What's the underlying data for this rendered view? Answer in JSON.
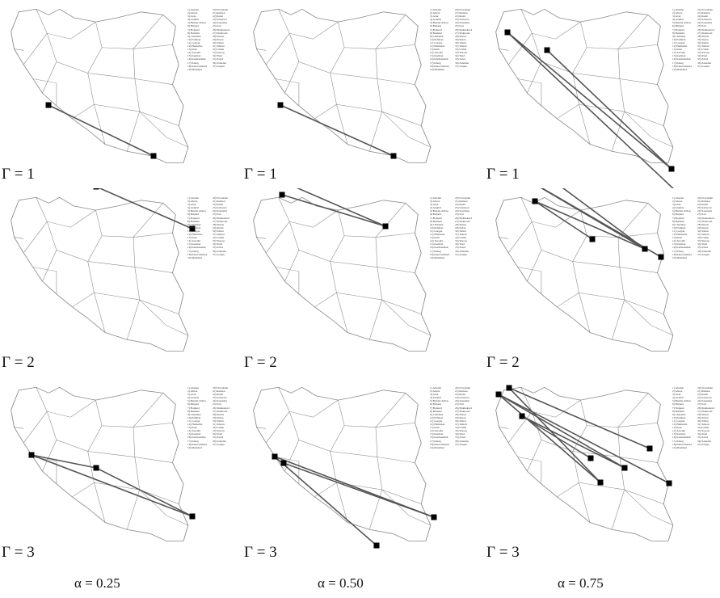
{
  "city_legend": [
    "1) Abadan",
    "2) Ahvaz",
    "3) Arak",
    "4) Ardabil",
    "5) Bandar Abbas",
    "6) Birjand",
    "7) Bojnurd",
    "8) Bushehr",
    "9) Chabahar",
    "10) Esfahan",
    "11) Gorgan",
    "12) Hamedan",
    "13) Ilam",
    "14) Jonoubi",
    "15) Kerman",
    "16) Kermanshah",
    "17) Kharg",
    "18) Khorramabad",
    "19) Mashhad",
    "20) Nowshahr",
    "21) Ramsar",
    "22) Rasht",
    "23) Sabzevar",
    "24) Sanandaj",
    "25) Sari",
    "26) Shahrekord",
    "27) Shahroud",
    "28) Shiraz",
    "29) Sirjan",
    "30) Tabriz",
    "31) Tehran",
    "32) Urmia",
    "33) Yasouj",
    "34) Yazd",
    "35) Zabol",
    "36) Zahedan",
    "37) Zanjan"
  ],
  "gamma_labels": [
    "Γ = 1",
    "Γ = 2",
    "Γ = 3"
  ],
  "alpha_labels": [
    "α = 0.25",
    "α = 0.50",
    "α = 0.75"
  ],
  "colors": {
    "route": "#555555",
    "border": "#8a8a8a",
    "hub": "#000000"
  },
  "panels": [
    {
      "gamma": "Γ = 1",
      "alpha": "α = 0.25",
      "hubs": [
        [
          60,
          130
        ],
        [
          190,
          193
        ]
      ],
      "routes": [
        [
          [
            60,
            130
          ],
          [
            190,
            193
          ]
        ]
      ]
    },
    {
      "gamma": "Γ = 1",
      "alpha": "α = 0.50",
      "hubs": [
        [
          47,
          130
        ],
        [
          187,
          193
        ]
      ],
      "routes": [
        [
          [
            47,
            130
          ],
          [
            187,
            193
          ]
        ]
      ]
    },
    {
      "gamma": "Γ = 1",
      "alpha": "α = 0.75",
      "hubs": [
        [
          28,
          40
        ],
        [
          77,
          62
        ],
        [
          231,
          209
        ],
        [
          237,
          237
        ]
      ],
      "routes": [
        [
          [
            28,
            40
          ],
          [
            231,
            209
          ]
        ],
        [
          [
            28,
            40
          ],
          [
            237,
            237
          ]
        ],
        [
          [
            77,
            62
          ],
          [
            231,
            209
          ]
        ]
      ]
    },
    {
      "gamma": "Γ = 2",
      "alpha": "α = 0.25",
      "hubs": [
        [
          39,
          215
        ],
        [
          119,
          231
        ],
        [
          238,
          283
        ]
      ],
      "routes": [
        [
          [
            39,
            215
          ],
          [
            119,
            231
          ]
        ],
        [
          [
            119,
            231
          ],
          [
            238,
            283
          ]
        ]
      ]
    },
    {
      "gamma": "Γ = 2",
      "alpha": "α = 0.50",
      "hubs": [
        [
          39,
          220
        ],
        [
          49,
          241
        ],
        [
          177,
          280
        ]
      ],
      "routes": [
        [
          [
            39,
            220
          ],
          [
            177,
            280
          ]
        ],
        [
          [
            49,
            241
          ],
          [
            177,
            280
          ]
        ]
      ]
    },
    {
      "gamma": "Γ = 2",
      "alpha": "α = 0.75",
      "hubs": [
        [
          28,
          208
        ],
        [
          77,
          218
        ],
        [
          62,
          249
        ],
        [
          133,
          296
        ],
        [
          198,
          308
        ],
        [
          218,
          318
        ]
      ],
      "routes": [
        [
          [
            28,
            208
          ],
          [
            198,
            308
          ]
        ],
        [
          [
            28,
            208
          ],
          [
            218,
            318
          ]
        ],
        [
          [
            77,
            218
          ],
          [
            198,
            308
          ]
        ],
        [
          [
            62,
            249
          ],
          [
            133,
            296
          ]
        ],
        [
          [
            62,
            249
          ],
          [
            198,
            308
          ]
        ]
      ]
    },
    {
      "gamma": "Γ = 3",
      "alpha": "α = 0.25",
      "hubs": [
        [
          39,
          563
        ],
        [
          119,
          579
        ],
        [
          238,
          639
        ]
      ],
      "routes": [
        [
          [
            39,
            563
          ],
          [
            119,
            579
          ]
        ],
        [
          [
            119,
            579
          ],
          [
            238,
            639
          ]
        ],
        [
          [
            39,
            563
          ],
          [
            238,
            639
          ]
        ]
      ]
    },
    {
      "gamma": "Γ = 3",
      "alpha": "α = 0.50",
      "hubs": [
        [
          40,
          565
        ],
        [
          51,
          573
        ],
        [
          166,
          675
        ],
        [
          237,
          640
        ]
      ],
      "routes": [
        [
          [
            40,
            565
          ],
          [
            166,
            675
          ]
        ],
        [
          [
            40,
            565
          ],
          [
            237,
            640
          ]
        ],
        [
          [
            51,
            573
          ],
          [
            237,
            640
          ]
        ]
      ]
    },
    {
      "gamma": "Γ = 3",
      "alpha": "α = 0.75",
      "hubs": [
        [
          17,
          488
        ],
        [
          30,
          480
        ],
        [
          46,
          515
        ],
        [
          131,
          567
        ],
        [
          143,
          597
        ],
        [
          204,
          555
        ],
        [
          228,
          598
        ],
        [
          173,
          579
        ]
      ],
      "routes": [
        [
          [
            17,
            488
          ],
          [
            143,
            597
          ]
        ],
        [
          [
            17,
            488
          ],
          [
            228,
            598
          ]
        ],
        [
          [
            30,
            480
          ],
          [
            204,
            555
          ]
        ],
        [
          [
            30,
            480
          ],
          [
            143,
            597
          ]
        ],
        [
          [
            46,
            515
          ],
          [
            131,
            567
          ]
        ],
        [
          [
            46,
            515
          ],
          [
            173,
            579
          ]
        ],
        [
          [
            17,
            488
          ],
          [
            173,
            579
          ]
        ]
      ]
    }
  ]
}
